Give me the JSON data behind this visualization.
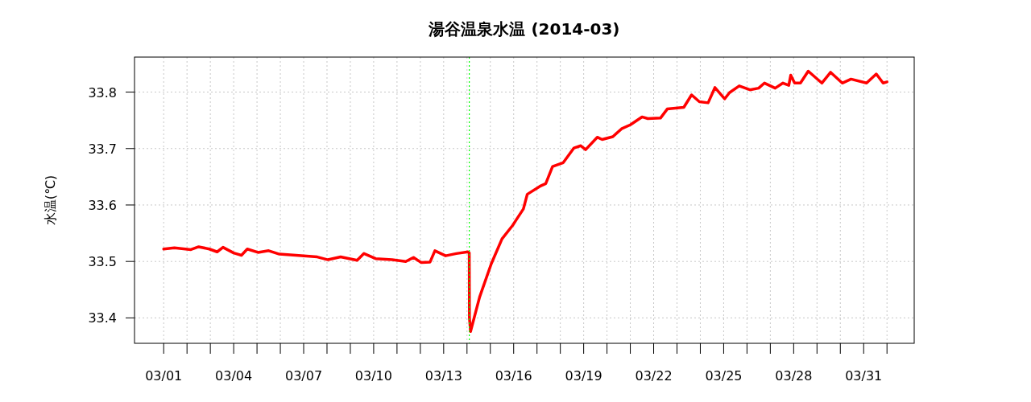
{
  "chart_data": {
    "type": "line",
    "title": "湯谷温泉水温 (2014-03)",
    "ylabel": "水温(℃)",
    "x": [
      "2014-03-01T00:00",
      "2014-03-01T11:00",
      "2014-03-02T04:00",
      "2014-03-02T12:00",
      "2014-03-02T23:00",
      "2014-03-03T07:00",
      "2014-03-03T13:00",
      "2014-03-04T00:00",
      "2014-03-04T08:00",
      "2014-03-04T14:00",
      "2014-03-05T01:00",
      "2014-03-05T12:00",
      "2014-03-05T23:00",
      "2014-03-06T16:00",
      "2014-03-07T14:00",
      "2014-03-08T01:00",
      "2014-03-08T14:00",
      "2014-03-09T07:00",
      "2014-03-09T14:00",
      "2014-03-10T02:00",
      "2014-03-10T19:00",
      "2014-03-11T09:00",
      "2014-03-11T17:00",
      "2014-03-12T01:00",
      "2014-03-12T10:00",
      "2014-03-12T15:00",
      "2014-03-13T02:00",
      "2014-03-13T13:00",
      "2014-03-14T01:00",
      "2014-03-14T02:20",
      "2014-03-14T02:30",
      "2014-03-14T03:40",
      "2014-03-14T13:00",
      "2014-03-15T01:00",
      "2014-03-15T12:00",
      "2014-03-15T23:00",
      "2014-03-16T02:00",
      "2014-03-16T10:00",
      "2014-03-16T14:00",
      "2014-03-17T04:00",
      "2014-03-17T09:00",
      "2014-03-17T16:00",
      "2014-03-18T03:00",
      "2014-03-18T14:00",
      "2014-03-18T21:00",
      "2014-03-19T02:00",
      "2014-03-19T14:00",
      "2014-03-19T19:00",
      "2014-03-20T06:00",
      "2014-03-20T15:00",
      "2014-03-21T00:00",
      "2014-03-21T12:00",
      "2014-03-21T18:00",
      "2014-03-22T07:00",
      "2014-03-22T14:00",
      "2014-03-23T07:00",
      "2014-03-23T15:00",
      "2014-03-23T23:00",
      "2014-03-24T08:00",
      "2014-03-24T15:00",
      "2014-03-25T01:00",
      "2014-03-25T06:00",
      "2014-03-25T16:00",
      "2014-03-26T03:00",
      "2014-03-26T12:00",
      "2014-03-26T18:00",
      "2014-03-27T05:00",
      "2014-03-27T13:00",
      "2014-03-27T19:00",
      "2014-03-27T21:00",
      "2014-03-28T01:00",
      "2014-03-28T07:00",
      "2014-03-28T15:00",
      "2014-03-29T05:00",
      "2014-03-29T14:00",
      "2014-03-30T02:00",
      "2014-03-30T11:00",
      "2014-03-31T03:00",
      "2014-03-31T13:00",
      "2014-03-31T20:00",
      "2014-04-01T00:00"
    ],
    "series": [
      {
        "color": "#ff0000",
        "values": [
          33.522,
          33.524,
          33.521,
          33.526,
          33.522,
          33.517,
          33.525,
          33.515,
          33.511,
          33.522,
          33.516,
          33.519,
          33.513,
          33.511,
          33.508,
          33.503,
          33.508,
          33.502,
          33.514,
          33.505,
          33.503,
          33.5,
          33.507,
          33.498,
          33.499,
          33.519,
          33.51,
          33.514,
          33.517,
          33.515,
          33.4,
          33.376,
          33.437,
          33.496,
          33.54,
          33.564,
          33.572,
          33.593,
          33.619,
          33.634,
          33.638,
          33.668,
          33.675,
          33.701,
          33.705,
          33.698,
          33.72,
          33.716,
          33.721,
          33.735,
          33.742,
          33.756,
          33.753,
          33.754,
          33.77,
          33.773,
          33.795,
          33.783,
          33.781,
          33.808,
          33.788,
          33.799,
          33.811,
          33.804,
          33.807,
          33.816,
          33.807,
          33.816,
          33.812,
          33.83,
          33.816,
          33.816,
          33.837,
          33.816,
          33.835,
          33.816,
          33.823,
          33.816,
          33.832,
          33.816,
          33.818
        ]
      }
    ],
    "xlim": [
      "2014-02-27T18:00",
      "2014-04-02T04:00"
    ],
    "xticks": [
      {
        "value": "2014-03-01",
        "label": "03/01"
      },
      {
        "value": "2014-03-02",
        "label": null
      },
      {
        "value": "2014-03-03",
        "label": null
      },
      {
        "value": "2014-03-04",
        "label": "03/04"
      },
      {
        "value": "2014-03-05",
        "label": null
      },
      {
        "value": "2014-03-06",
        "label": null
      },
      {
        "value": "2014-03-07",
        "label": "03/07"
      },
      {
        "value": "2014-03-08",
        "label": null
      },
      {
        "value": "2014-03-09",
        "label": null
      },
      {
        "value": "2014-03-10",
        "label": "03/10"
      },
      {
        "value": "2014-03-11",
        "label": null
      },
      {
        "value": "2014-03-12",
        "label": null
      },
      {
        "value": "2014-03-13",
        "label": "03/13"
      },
      {
        "value": "2014-03-14",
        "label": null
      },
      {
        "value": "2014-03-15",
        "label": null
      },
      {
        "value": "2014-03-16",
        "label": "03/16"
      },
      {
        "value": "2014-03-17",
        "label": null
      },
      {
        "value": "2014-03-18",
        "label": null
      },
      {
        "value": "2014-03-19",
        "label": "03/19"
      },
      {
        "value": "2014-03-20",
        "label": null
      },
      {
        "value": "2014-03-21",
        "label": null
      },
      {
        "value": "2014-03-22",
        "label": "03/22"
      },
      {
        "value": "2014-03-23",
        "label": null
      },
      {
        "value": "2014-03-24",
        "label": null
      },
      {
        "value": "2014-03-25",
        "label": "03/25"
      },
      {
        "value": "2014-03-26",
        "label": null
      },
      {
        "value": "2014-03-27",
        "label": null
      },
      {
        "value": "2014-03-28",
        "label": "03/28"
      },
      {
        "value": "2014-03-29",
        "label": null
      },
      {
        "value": "2014-03-30",
        "label": null
      },
      {
        "value": "2014-03-31",
        "label": "03/31"
      },
      {
        "value": "2014-04-01",
        "label": null
      }
    ],
    "ylim": [
      33.355,
      33.862
    ],
    "yticks": [
      33.4,
      33.5,
      33.6,
      33.7,
      33.8
    ],
    "grid": true,
    "ref_lines": [
      {
        "axis": "x",
        "value": "2014-03-14T02:20",
        "color": "#00ff00",
        "line_style": "dotted"
      }
    ]
  }
}
